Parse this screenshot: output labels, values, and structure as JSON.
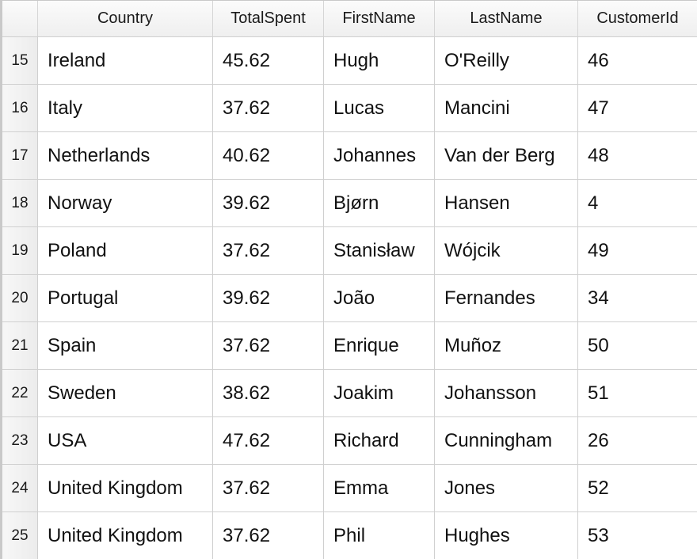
{
  "table": {
    "columns": [
      "Country",
      "TotalSpent",
      "FirstName",
      "LastName",
      "CustomerId"
    ],
    "rows": [
      {
        "num": "15",
        "cells": [
          "Ireland",
          "45.62",
          "Hugh",
          "O'Reilly",
          "46"
        ]
      },
      {
        "num": "16",
        "cells": [
          "Italy",
          "37.62",
          "Lucas",
          "Mancini",
          "47"
        ]
      },
      {
        "num": "17",
        "cells": [
          "Netherlands",
          "40.62",
          "Johannes",
          "Van der Berg",
          "48"
        ]
      },
      {
        "num": "18",
        "cells": [
          "Norway",
          "39.62",
          "Bjørn",
          "Hansen",
          "4"
        ]
      },
      {
        "num": "19",
        "cells": [
          "Poland",
          "37.62",
          "Stanisław",
          "Wójcik",
          "49"
        ]
      },
      {
        "num": "20",
        "cells": [
          "Portugal",
          "39.62",
          "João",
          "Fernandes",
          "34"
        ]
      },
      {
        "num": "21",
        "cells": [
          "Spain",
          "37.62",
          "Enrique",
          "Muñoz",
          "50"
        ]
      },
      {
        "num": "22",
        "cells": [
          "Sweden",
          "38.62",
          "Joakim",
          "Johansson",
          "51"
        ]
      },
      {
        "num": "23",
        "cells": [
          "USA",
          "47.62",
          "Richard",
          "Cunningham",
          "26"
        ]
      },
      {
        "num": "24",
        "cells": [
          "United Kingdom",
          "37.62",
          "Emma",
          "Jones",
          "52"
        ]
      },
      {
        "num": "25",
        "cells": [
          "United Kingdom",
          "37.62",
          "Phil",
          "Hughes",
          "53"
        ]
      }
    ]
  }
}
